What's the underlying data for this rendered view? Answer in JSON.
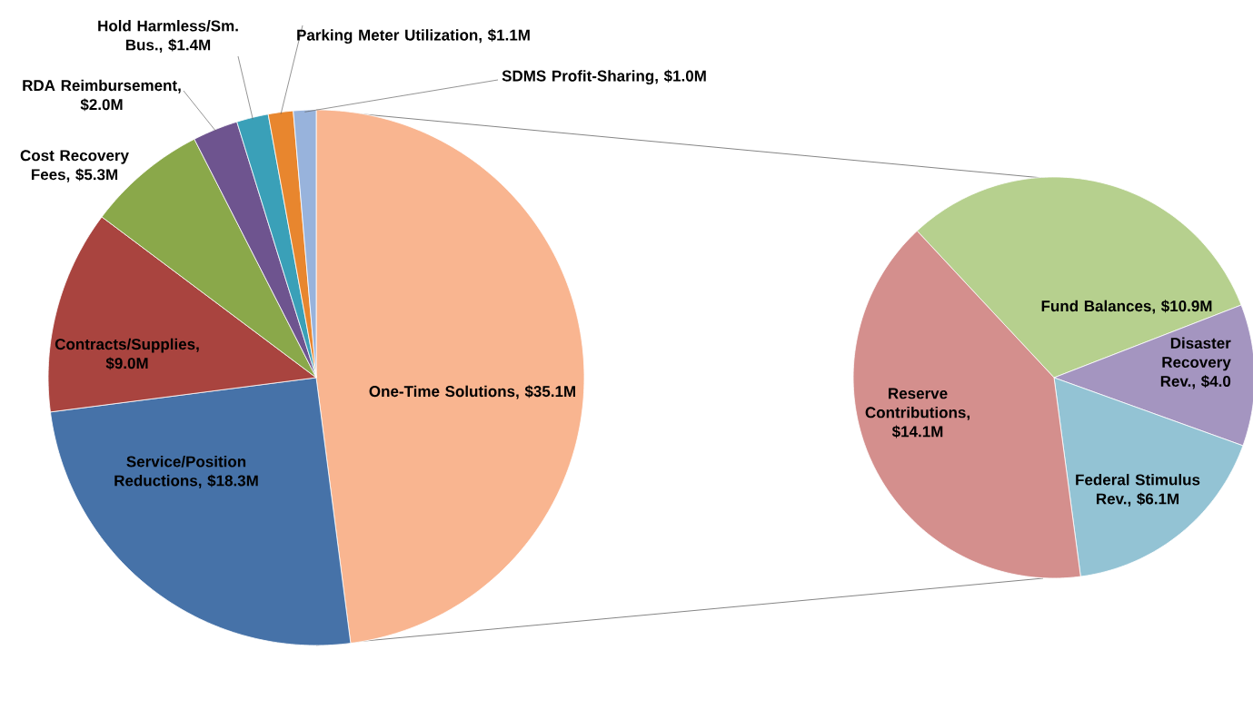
{
  "chart_data": [
    {
      "type": "pie",
      "categories": [
        "One-Time Solutions, $35.1M",
        "Service/Position Reductions, $18.3M",
        "Contracts/Supplies, $9.0M",
        "Cost Recovery Fees, $5.3M",
        "RDA Reimbursement, $2.0M",
        "Hold Harmless/Sm. Bus., $1.4M",
        "Parking Meter Utilization, $1.1M",
        "SDMS Profit-Sharing, $1.0M"
      ],
      "values": [
        35.1,
        18.3,
        9.0,
        5.3,
        2.0,
        1.4,
        1.1,
        1.0
      ],
      "colors": [
        "#f9b590",
        "#4672a8",
        "#a9443f",
        "#8aa84a",
        "#6e548f",
        "#3aa0b8",
        "#e8862e",
        "#98b3dc"
      ]
    },
    {
      "type": "pie",
      "categories": [
        "Fund Balances, $10.9M",
        "Disaster Recovery Rev., $4.0",
        "Federal Stimulus Rev., $6.1M",
        "Reserve Contributions, $14.1M"
      ],
      "values": [
        10.9,
        4.0,
        6.1,
        14.1
      ],
      "colors": [
        "#b6d08e",
        "#a495c0",
        "#93c3d4",
        "#d48f8d"
      ]
    }
  ]
}
